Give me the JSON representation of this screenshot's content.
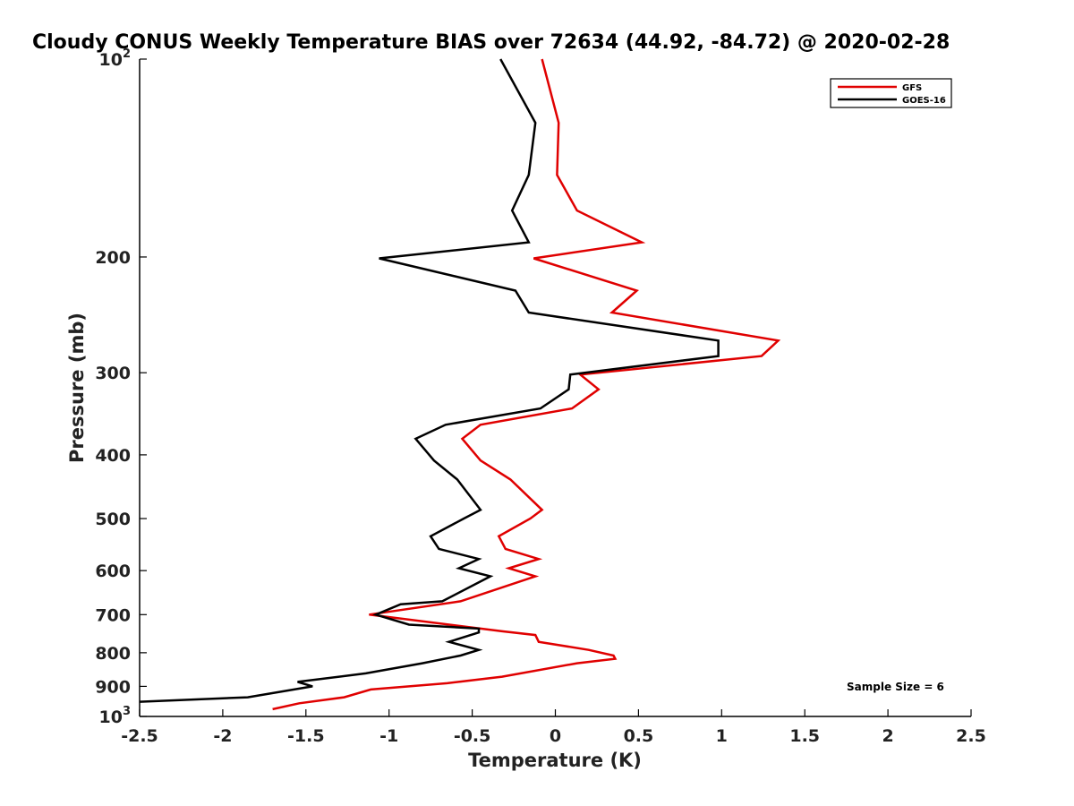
{
  "chart_data": {
    "type": "line",
    "title": "Cloudy CONUS Weekly Temperature BIAS over 72634 (44.92, -84.72) @ 2020-02-28",
    "xlabel": "Temperature (K)",
    "ylabel": "Pressure (mb)",
    "xlim": [
      -2.5,
      2.5
    ],
    "ylim": [
      100,
      1000
    ],
    "y_scale": "log",
    "y_reversed": true,
    "x_ticks": [
      "-2.5",
      "-2",
      "-1.5",
      "-1",
      "-0.5",
      "0",
      "0.5",
      "1",
      "1.5",
      "2",
      "2.5"
    ],
    "y_ticks": [
      {
        "value": 100,
        "label": "10",
        "sup": "2"
      },
      {
        "value": 200,
        "label": "200",
        "sup": ""
      },
      {
        "value": 300,
        "label": "300",
        "sup": ""
      },
      {
        "value": 400,
        "label": "400",
        "sup": ""
      },
      {
        "value": 500,
        "label": "500",
        "sup": ""
      },
      {
        "value": 600,
        "label": "600",
        "sup": ""
      },
      {
        "value": 700,
        "label": "700",
        "sup": ""
      },
      {
        "value": 800,
        "label": "800",
        "sup": ""
      },
      {
        "value": 900,
        "label": "900",
        "sup": ""
      },
      {
        "value": 1000,
        "label": "10",
        "sup": "3"
      }
    ],
    "legend_position": "top-right",
    "grid": false,
    "annotation": "Sample Size = 6",
    "series": [
      {
        "name": "GFS",
        "color": "#e00000",
        "points": [
          [
            -0.08,
            100
          ],
          [
            0.02,
            125
          ],
          [
            0.01,
            150
          ],
          [
            0.13,
            170
          ],
          [
            0.52,
            190
          ],
          [
            -0.13,
            201
          ],
          [
            0.49,
            225
          ],
          [
            0.34,
            243
          ],
          [
            1.34,
            268
          ],
          [
            1.24,
            283
          ],
          [
            0.15,
            302
          ],
          [
            0.26,
            318
          ],
          [
            0.1,
            340
          ],
          [
            -0.45,
            360
          ],
          [
            -0.56,
            378
          ],
          [
            -0.45,
            408
          ],
          [
            -0.27,
            436
          ],
          [
            -0.08,
            485
          ],
          [
            -0.15,
            500
          ],
          [
            -0.34,
            532
          ],
          [
            -0.3,
            556
          ],
          [
            -0.1,
            576
          ],
          [
            -0.28,
            595
          ],
          [
            -0.12,
            612
          ],
          [
            -0.57,
            668
          ],
          [
            -1.12,
            700
          ],
          [
            -0.32,
            742
          ],
          [
            -0.12,
            752
          ],
          [
            -0.1,
            770
          ],
          [
            0.2,
            792
          ],
          [
            0.35,
            808
          ],
          [
            0.36,
            817
          ],
          [
            0.13,
            830
          ],
          [
            -0.32,
            870
          ],
          [
            -0.65,
            890
          ],
          [
            -1.11,
            910
          ],
          [
            -1.27,
            935
          ],
          [
            -1.54,
            955
          ],
          [
            -1.7,
            975
          ]
        ]
      },
      {
        "name": "GOES-16",
        "color": "#000000",
        "points": [
          [
            -0.33,
            100
          ],
          [
            -0.12,
            125
          ],
          [
            -0.16,
            150
          ],
          [
            -0.26,
            170
          ],
          [
            -0.16,
            190
          ],
          [
            -1.06,
            201
          ],
          [
            -0.24,
            225
          ],
          [
            -0.16,
            243
          ],
          [
            0.98,
            268
          ],
          [
            0.98,
            283
          ],
          [
            0.09,
            302
          ],
          [
            0.08,
            318
          ],
          [
            -0.09,
            340
          ],
          [
            -0.66,
            360
          ],
          [
            -0.84,
            378
          ],
          [
            -0.73,
            408
          ],
          [
            -0.59,
            436
          ],
          [
            -0.45,
            485
          ],
          [
            -0.55,
            500
          ],
          [
            -0.75,
            532
          ],
          [
            -0.7,
            556
          ],
          [
            -0.46,
            576
          ],
          [
            -0.58,
            595
          ],
          [
            -0.39,
            612
          ],
          [
            -0.68,
            668
          ],
          [
            -0.93,
            675
          ],
          [
            -1.08,
            700
          ],
          [
            -0.88,
            725
          ],
          [
            -0.46,
            735
          ],
          [
            -0.46,
            745
          ],
          [
            -0.64,
            770
          ],
          [
            -0.46,
            792
          ],
          [
            -0.57,
            808
          ],
          [
            -0.8,
            830
          ],
          [
            -1.14,
            860
          ],
          [
            -1.55,
            886
          ],
          [
            -1.46,
            900
          ],
          [
            -1.85,
            935
          ],
          [
            -2.5,
            950
          ]
        ]
      }
    ]
  }
}
